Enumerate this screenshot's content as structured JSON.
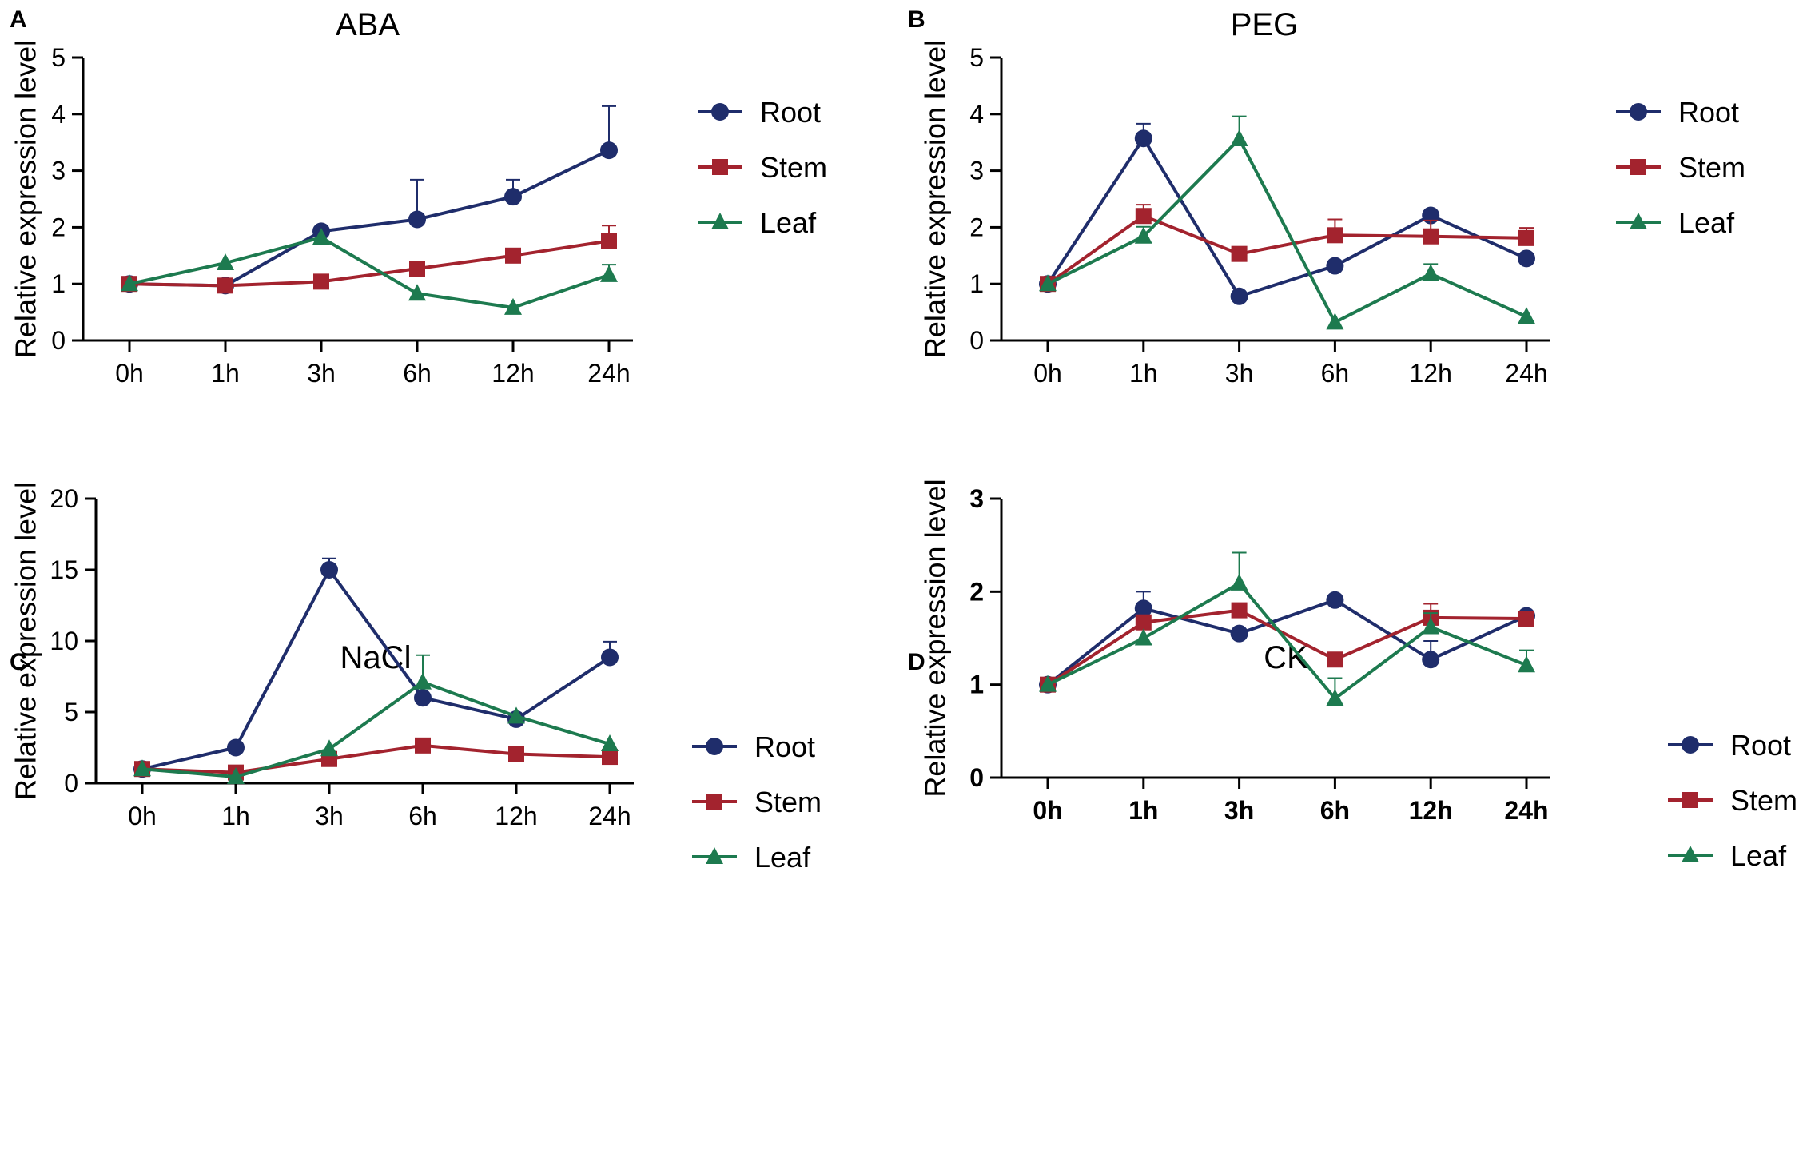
{
  "figure": {
    "colors": {
      "Root": "#1f2d6b",
      "Stem": "#a3232e",
      "Leaf": "#1d7a4f",
      "axis": "#000000"
    }
  },
  "chart_data": [
    {
      "panel": "A",
      "type": "line",
      "title": "ABA",
      "xlabel": "",
      "ylabel": "Relative expression level",
      "categories": [
        "0h",
        "1h",
        "3h",
        "6h",
        "12h",
        "24h"
      ],
      "ylim": [
        0,
        5
      ],
      "yticks": [
        0,
        1,
        2,
        3,
        4,
        5
      ],
      "bold_ticks": false,
      "series": [
        {
          "name": "Root",
          "marker": "circle",
          "values": [
            1.0,
            0.97,
            1.93,
            2.14,
            2.54,
            3.36
          ],
          "errors": [
            0.02,
            0.04,
            0.12,
            0.7,
            0.3,
            0.78
          ]
        },
        {
          "name": "Stem",
          "marker": "square",
          "values": [
            1.0,
            0.97,
            1.04,
            1.27,
            1.5,
            1.76
          ],
          "errors": [
            0.02,
            0.05,
            0.14,
            0.1,
            0.06,
            0.27
          ]
        },
        {
          "name": "Leaf",
          "marker": "triangle",
          "values": [
            1.0,
            1.37,
            1.82,
            0.83,
            0.58,
            1.16
          ],
          "errors": [
            0.02,
            0.11,
            0.05,
            0.03,
            0.14,
            0.18
          ]
        }
      ]
    },
    {
      "panel": "B",
      "type": "line",
      "title": "PEG",
      "xlabel": "",
      "ylabel": "Relative expression level",
      "categories": [
        "0h",
        "1h",
        "3h",
        "6h",
        "12h",
        "24h"
      ],
      "ylim": [
        0,
        5
      ],
      "yticks": [
        0,
        1,
        2,
        3,
        4,
        5
      ],
      "bold_ticks": false,
      "series": [
        {
          "name": "Root",
          "marker": "circle",
          "values": [
            1.0,
            3.57,
            0.78,
            1.32,
            2.21,
            1.45
          ],
          "errors": [
            0.02,
            0.26,
            0.03,
            0.12,
            0.12,
            0.15
          ]
        },
        {
          "name": "Stem",
          "marker": "square",
          "values": [
            1.0,
            2.2,
            1.53,
            1.86,
            1.84,
            1.81
          ],
          "errors": [
            0.02,
            0.2,
            0.15,
            0.28,
            0.28,
            0.18
          ]
        },
        {
          "name": "Leaf",
          "marker": "triangle",
          "values": [
            1.0,
            1.84,
            3.56,
            0.32,
            1.18,
            0.42
          ],
          "errors": [
            0.02,
            0.17,
            0.4,
            0.02,
            0.17,
            0.02
          ]
        }
      ]
    },
    {
      "panel": "C",
      "type": "line",
      "title": "NaCl",
      "xlabel": "",
      "ylabel": "Relative expression level",
      "categories": [
        "0h",
        "1h",
        "3h",
        "6h",
        "12h",
        "24h"
      ],
      "ylim": [
        0,
        20
      ],
      "yticks": [
        0,
        5,
        10,
        15,
        20
      ],
      "bold_ticks": false,
      "series": [
        {
          "name": "Root",
          "marker": "circle",
          "values": [
            1.0,
            2.5,
            15.0,
            6.0,
            4.5,
            8.85
          ],
          "errors": [
            0.05,
            0.1,
            0.8,
            0.3,
            0.3,
            1.1
          ]
        },
        {
          "name": "Stem",
          "marker": "square",
          "values": [
            1.0,
            0.75,
            1.7,
            2.65,
            2.05,
            1.85
          ],
          "errors": [
            0.05,
            0.1,
            0.2,
            0.2,
            0.15,
            0.2
          ]
        },
        {
          "name": "Leaf",
          "marker": "triangle",
          "values": [
            1.0,
            0.45,
            2.4,
            7.1,
            4.7,
            2.75
          ],
          "errors": [
            0.05,
            0.05,
            0.2,
            1.9,
            0.5,
            0.5
          ]
        }
      ]
    },
    {
      "panel": "D",
      "type": "line",
      "title": "CK",
      "xlabel": "",
      "ylabel": "Relative expression level",
      "categories": [
        "0h",
        "1h",
        "3h",
        "6h",
        "12h",
        "24h"
      ],
      "ylim": [
        0,
        3
      ],
      "yticks": [
        0,
        1,
        2,
        3
      ],
      "bold_ticks": true,
      "series": [
        {
          "name": "Root",
          "marker": "circle",
          "values": [
            1.0,
            1.82,
            1.55,
            1.91,
            1.27,
            1.74
          ],
          "errors": [
            0.02,
            0.18,
            0.05,
            0.03,
            0.2,
            0.03
          ]
        },
        {
          "name": "Stem",
          "marker": "square",
          "values": [
            1.0,
            1.67,
            1.8,
            1.27,
            1.72,
            1.71
          ],
          "errors": [
            0.02,
            0.05,
            0.08,
            0.05,
            0.15,
            0.03
          ]
        },
        {
          "name": "Leaf",
          "marker": "triangle",
          "values": [
            1.0,
            1.5,
            2.09,
            0.85,
            1.62,
            1.21
          ],
          "errors": [
            0.02,
            0.04,
            0.33,
            0.22,
            0.15,
            0.16
          ]
        }
      ]
    }
  ]
}
